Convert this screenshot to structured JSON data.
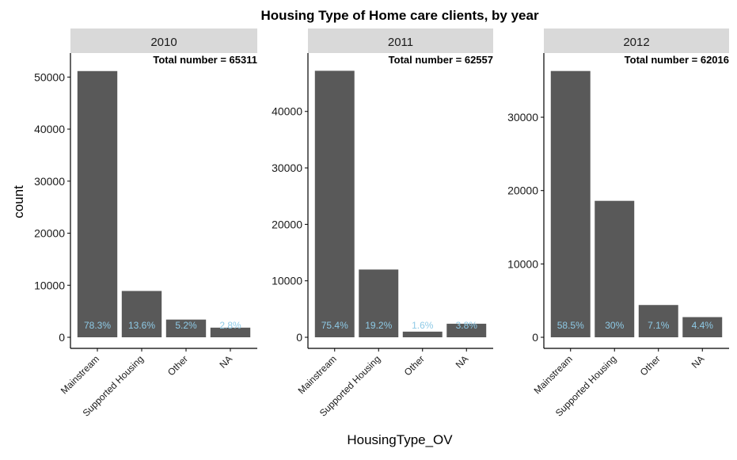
{
  "title": "Housing Type of Home care clients, by year",
  "xlabel": "HousingType_OV",
  "ylabel": "count",
  "colors": {
    "bar": "#595959",
    "strip": "#d9d9d9",
    "pct_label": "#8ecae6",
    "axis": "#000000"
  },
  "chart_data": [
    {
      "type": "bar",
      "panel": "2010",
      "categories": [
        "Mainstream",
        "Supported Housing",
        "Other",
        "NA"
      ],
      "values": [
        51150,
        8900,
        3400,
        1850
      ],
      "percent_labels": [
        "78.3%",
        "13.6%",
        "5.2%",
        "2.8%"
      ],
      "annotation": "Total number = 65311",
      "yticks": [
        0,
        10000,
        20000,
        30000,
        40000,
        50000
      ],
      "ylim": [
        0,
        53700
      ]
    },
    {
      "type": "bar",
      "panel": "2011",
      "categories": [
        "Mainstream",
        "Supported Housing",
        "Other",
        "NA"
      ],
      "values": [
        47200,
        12000,
        1000,
        2400
      ],
      "percent_labels": [
        "75.4%",
        "19.2%",
        "1.6%",
        "3.8%"
      ],
      "annotation": "Total number = 62557",
      "yticks": [
        0,
        10000,
        20000,
        30000,
        40000
      ],
      "ylim": [
        0,
        49500
      ]
    },
    {
      "type": "bar",
      "panel": "2012",
      "categories": [
        "Mainstream",
        "Supported Housing",
        "Other",
        "NA"
      ],
      "values": [
        36300,
        18600,
        4400,
        2750
      ],
      "percent_labels": [
        "58.5%",
        "30%",
        "7.1%",
        "4.4%"
      ],
      "annotation": "Total number = 62016",
      "yticks": [
        0,
        10000,
        20000,
        30000
      ],
      "ylim": [
        0,
        38100
      ]
    }
  ]
}
